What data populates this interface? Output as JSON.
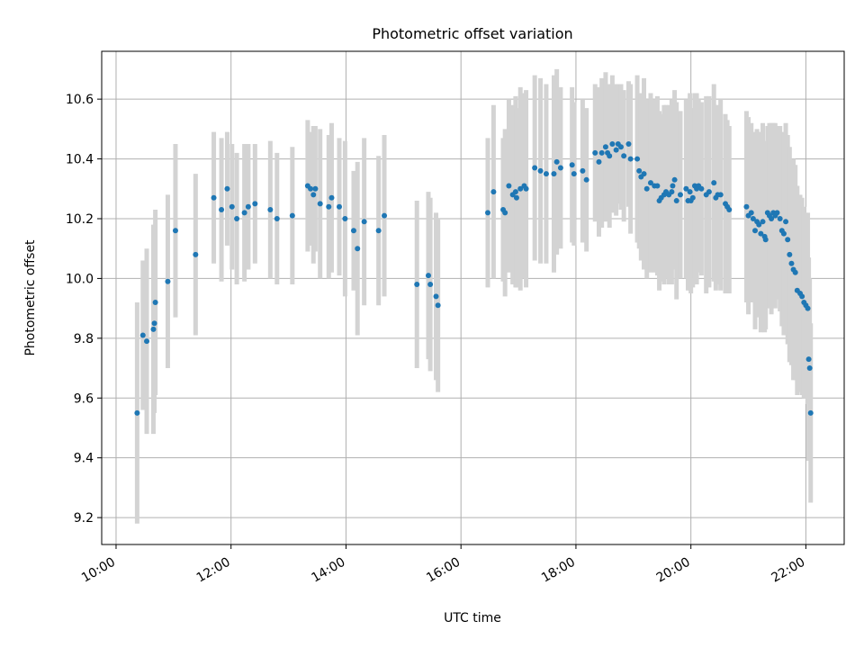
{
  "chart_data": {
    "type": "scatter",
    "title": "Photometric offset variation",
    "xlabel": "UTC time",
    "ylabel": "Photometric offset",
    "xlim": [
      "09:45",
      "22:40"
    ],
    "ylim": [
      9.11,
      10.76
    ],
    "x_ticks": [
      "10:00",
      "12:00",
      "14:00",
      "16:00",
      "18:00",
      "20:00",
      "22:00"
    ],
    "y_ticks": [
      "9.2",
      "9.4",
      "9.6",
      "9.8",
      "10.0",
      "10.2",
      "10.4",
      "10.6"
    ],
    "grid": true,
    "colors": {
      "points": "#1f77b4",
      "errorbars": "#d3d3d3",
      "grid": "#b0b0b0",
      "axes": "#000000"
    },
    "series": [
      {
        "x": [
          "10:22",
          "10:28",
          "10:32",
          "10:39",
          "10:40",
          "10:41",
          "10:54",
          "11:02",
          "11:23",
          "11:42",
          "11:50",
          "11:56",
          "12:01",
          "12:06",
          "12:14",
          "12:18",
          "12:25",
          "12:41",
          "12:48",
          "13:04",
          "13:20",
          "13:23",
          "13:26",
          "13:28",
          "13:33",
          "13:42",
          "13:45",
          "13:53",
          "13:59",
          "14:08",
          "14:12",
          "14:19",
          "14:34",
          "14:40",
          "15:14",
          "15:26",
          "15:28",
          "15:34",
          "15:36",
          "16:28",
          "16:34",
          "16:44",
          "16:46",
          "16:50",
          "16:54",
          "16:57",
          "16:58",
          "17:02",
          "17:06",
          "17:08",
          "17:17",
          "17:23",
          "17:29",
          "17:37",
          "17:40",
          "17:44",
          "17:56",
          "17:58",
          "18:07",
          "18:11",
          "18:20",
          "18:24",
          "18:27",
          "18:31",
          "18:33",
          "18:35",
          "18:38",
          "18:42",
          "18:44",
          "18:47",
          "18:50",
          "18:55",
          "18:57",
          "19:04",
          "19:06",
          "19:08",
          "19:11",
          "19:14",
          "19:18",
          "19:22",
          "19:25",
          "19:27",
          "19:29",
          "19:32",
          "19:34",
          "19:37",
          "19:40",
          "19:41",
          "19:43",
          "19:45",
          "19:49",
          "19:55",
          "19:57",
          "19:59",
          "20:00",
          "20:02",
          "20:04",
          "20:06",
          "20:08",
          "20:11",
          "20:16",
          "20:19",
          "20:24",
          "20:26",
          "20:28",
          "20:31",
          "20:36",
          "20:38",
          "20:40",
          "20:58",
          "21:00",
          "21:03",
          "21:05",
          "21:07",
          "21:09",
          "21:11",
          "21:13",
          "21:15",
          "21:17",
          "21:18",
          "21:20",
          "21:22",
          "21:24",
          "21:26",
          "21:28",
          "21:30",
          "21:33",
          "21:35",
          "21:37",
          "21:39",
          "21:41",
          "21:43",
          "21:45",
          "21:47",
          "21:49",
          "21:51",
          "21:54",
          "21:56",
          "21:58",
          "22:00",
          "22:02",
          "22:03",
          "22:04",
          "22:05"
        ],
        "y": [
          9.55,
          9.81,
          9.79,
          9.83,
          9.85,
          9.92,
          9.99,
          10.16,
          10.08,
          10.27,
          10.23,
          10.3,
          10.24,
          10.2,
          10.22,
          10.24,
          10.25,
          10.23,
          10.2,
          10.21,
          10.31,
          10.3,
          10.28,
          10.3,
          10.25,
          10.24,
          10.27,
          10.24,
          10.2,
          10.16,
          10.1,
          10.19,
          10.16,
          10.21,
          9.98,
          10.01,
          9.98,
          9.94,
          9.91,
          10.22,
          10.29,
          10.23,
          10.22,
          10.31,
          10.28,
          10.29,
          10.27,
          10.3,
          10.31,
          10.3,
          10.37,
          10.36,
          10.35,
          10.35,
          10.39,
          10.37,
          10.38,
          10.35,
          10.36,
          10.33,
          10.42,
          10.39,
          10.42,
          10.44,
          10.42,
          10.41,
          10.45,
          10.43,
          10.45,
          10.44,
          10.41,
          10.45,
          10.4,
          10.4,
          10.36,
          10.34,
          10.35,
          10.3,
          10.32,
          10.31,
          10.31,
          10.26,
          10.27,
          10.28,
          10.29,
          10.28,
          10.29,
          10.31,
          10.33,
          10.26,
          10.28,
          10.3,
          10.26,
          10.29,
          10.26,
          10.27,
          10.31,
          10.3,
          10.31,
          10.3,
          10.28,
          10.29,
          10.32,
          10.27,
          10.28,
          10.28,
          10.25,
          10.24,
          10.23,
          10.24,
          10.21,
          10.22,
          10.2,
          10.16,
          10.19,
          10.18,
          10.15,
          10.19,
          10.14,
          10.13,
          10.22,
          10.21,
          10.2,
          10.22,
          10.21,
          10.22,
          10.2,
          10.16,
          10.15,
          10.19,
          10.13,
          10.08,
          10.05,
          10.03,
          10.02,
          9.96,
          9.95,
          9.94,
          9.92,
          9.91,
          9.9,
          9.73,
          9.7,
          9.55
        ],
        "err": [
          0.37,
          0.25,
          0.31,
          0.35,
          0.3,
          0.31,
          0.29,
          0.29,
          0.27,
          0.22,
          0.24,
          0.19,
          0.21,
          0.22,
          0.23,
          0.21,
          0.2,
          0.23,
          0.22,
          0.23,
          0.22,
          0.19,
          0.23,
          0.21,
          0.25,
          0.24,
          0.25,
          0.23,
          0.26,
          0.2,
          0.29,
          0.28,
          0.25,
          0.27,
          0.28,
          0.28,
          0.29,
          0.28,
          0.29,
          0.25,
          0.29,
          0.24,
          0.28,
          0.29,
          0.3,
          0.32,
          0.3,
          0.34,
          0.31,
          0.33,
          0.31,
          0.31,
          0.3,
          0.33,
          0.31,
          0.27,
          0.26,
          0.24,
          0.24,
          0.24,
          0.23,
          0.25,
          0.25,
          0.25,
          0.22,
          0.24,
          0.23,
          0.22,
          0.2,
          0.21,
          0.22,
          0.21,
          0.25,
          0.28,
          0.26,
          0.28,
          0.32,
          0.3,
          0.3,
          0.29,
          0.3,
          0.3,
          0.28,
          0.3,
          0.29,
          0.3,
          0.31,
          0.27,
          0.3,
          0.33,
          0.28,
          0.3,
          0.3,
          0.33,
          0.31,
          0.3,
          0.31,
          0.32,
          0.29,
          0.29,
          0.33,
          0.32,
          0.33,
          0.31,
          0.3,
          0.32,
          0.3,
          0.29,
          0.28,
          0.32,
          0.33,
          0.3,
          0.28,
          0.33,
          0.31,
          0.31,
          0.33,
          0.33,
          0.32,
          0.3,
          0.29,
          0.31,
          0.32,
          0.3,
          0.31,
          0.29,
          0.31,
          0.32,
          0.34,
          0.33,
          0.35,
          0.36,
          0.34,
          0.37,
          0.36,
          0.35,
          0.33,
          0.33,
          0.32,
          0.31,
          0.32,
          0.34,
          0.3,
          0.3
        ]
      }
    ]
  }
}
